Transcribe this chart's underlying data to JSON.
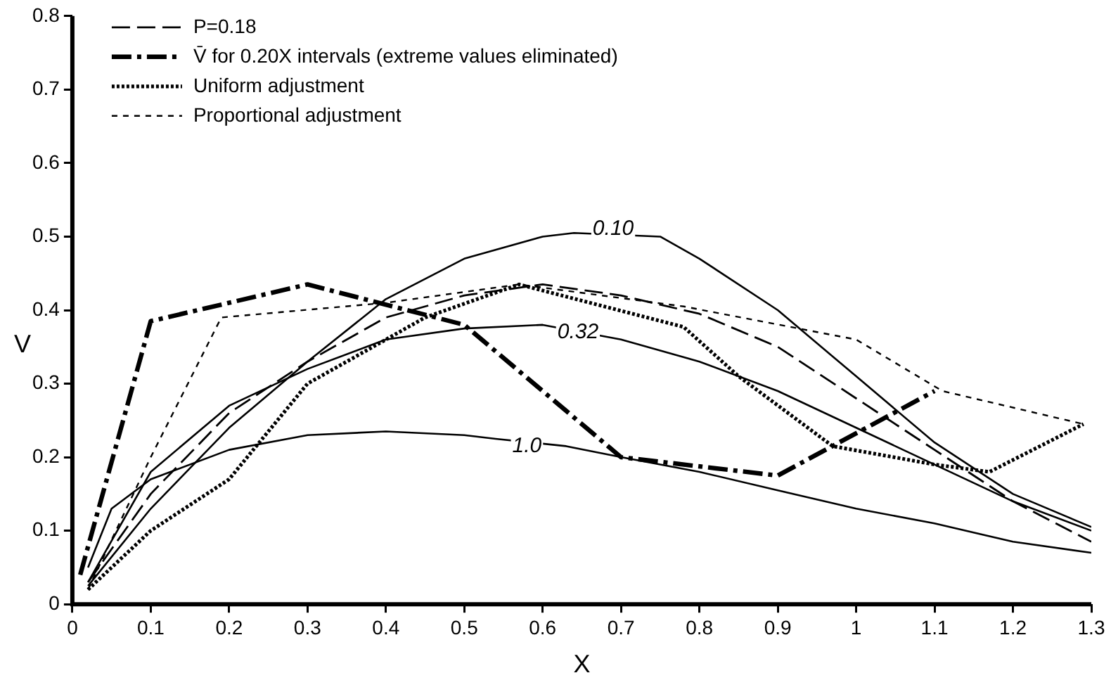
{
  "chart_data": {
    "type": "line",
    "xlabel": "X",
    "ylabel": "V",
    "xlim": [
      0,
      1.3
    ],
    "ylim": [
      0,
      0.8
    ],
    "xticks": [
      0,
      0.1,
      0.2,
      0.3,
      0.4,
      0.5,
      0.6,
      0.7,
      0.8,
      0.9,
      1.0,
      1.1,
      1.2,
      1.3
    ],
    "yticks": [
      0,
      0.1,
      0.2,
      0.3,
      0.4,
      0.5,
      0.6,
      0.7,
      0.8
    ],
    "grid": false,
    "legend": "top left",
    "marker": "none",
    "series": [
      {
        "color": "#000000",
        "line_style": "solid",
        "x": [
          0.02,
          0.1,
          0.2,
          0.3,
          0.4,
          0.5,
          0.6,
          0.64,
          0.75,
          0.8,
          0.9,
          1.0,
          1.1,
          1.2,
          1.3
        ],
        "values": [
          0.025,
          0.13,
          0.24,
          0.33,
          0.415,
          0.47,
          0.5,
          0.505,
          0.5,
          0.47,
          0.4,
          0.31,
          0.22,
          0.15,
          0.105
        ]
      },
      {
        "color": "#000000",
        "line_style": "solid",
        "x": [
          0.02,
          0.1,
          0.2,
          0.3,
          0.4,
          0.5,
          0.6,
          0.7,
          0.8,
          0.9,
          1.0,
          1.1,
          1.2,
          1.3
        ],
        "values": [
          0.03,
          0.18,
          0.27,
          0.32,
          0.36,
          0.375,
          0.38,
          0.36,
          0.33,
          0.29,
          0.24,
          0.19,
          0.14,
          0.1
        ]
      },
      {
        "color": "#000000",
        "line_style": "solid",
        "x": [
          0.02,
          0.05,
          0.1,
          0.2,
          0.3,
          0.4,
          0.5,
          0.54,
          0.63,
          0.7,
          0.8,
          0.9,
          1.0,
          1.1,
          1.2,
          1.3
        ],
        "values": [
          0.05,
          0.13,
          0.17,
          0.21,
          0.23,
          0.235,
          0.23,
          0.225,
          0.215,
          0.2,
          0.18,
          0.155,
          0.13,
          0.11,
          0.085,
          0.07
        ]
      },
      {
        "name": "P=0.18",
        "color": "#000000",
        "line_style": "longdash",
        "x": [
          0.02,
          0.1,
          0.2,
          0.3,
          0.4,
          0.5,
          0.6,
          0.7,
          0.8,
          0.9,
          1.0,
          1.1,
          1.2,
          1.3
        ],
        "values": [
          0.03,
          0.15,
          0.26,
          0.33,
          0.39,
          0.42,
          0.435,
          0.42,
          0.395,
          0.35,
          0.28,
          0.21,
          0.14,
          0.085
        ]
      },
      {
        "name": "V̄ for 0.20X intervals (extreme values eliminated)",
        "color": "#000000",
        "line_style": "dashdot",
        "x": [
          0.01,
          0.1,
          0.3,
          0.5,
          0.7,
          0.9,
          1.1
        ],
        "values": [
          0.04,
          0.385,
          0.435,
          0.38,
          0.2,
          0.175,
          0.29
        ]
      },
      {
        "name": "Uniform adjustment",
        "color": "#000000",
        "line_style": "dotted",
        "x": [
          0.02,
          0.1,
          0.2,
          0.3,
          0.45,
          0.57,
          0.78,
          0.85,
          0.97,
          1.1,
          1.17,
          1.29
        ],
        "values": [
          0.02,
          0.1,
          0.17,
          0.3,
          0.39,
          0.435,
          0.377,
          0.31,
          0.215,
          0.19,
          0.18,
          0.245
        ]
      },
      {
        "name": "Proportional adjustment",
        "color": "#000000",
        "line_style": "dashed",
        "x": [
          0.02,
          0.1,
          0.19,
          0.4,
          0.57,
          0.78,
          1.0,
          1.11,
          1.29
        ],
        "values": [
          0.02,
          0.2,
          0.39,
          0.41,
          0.435,
          0.405,
          0.36,
          0.29,
          0.245
        ]
      }
    ],
    "annotations": [
      {
        "text": "0.10",
        "x": 0.69,
        "y": 0.51
      },
      {
        "text": "0.32",
        "x": 0.645,
        "y": 0.37
      },
      {
        "text": "1.0",
        "x": 0.58,
        "y": 0.215
      }
    ]
  }
}
